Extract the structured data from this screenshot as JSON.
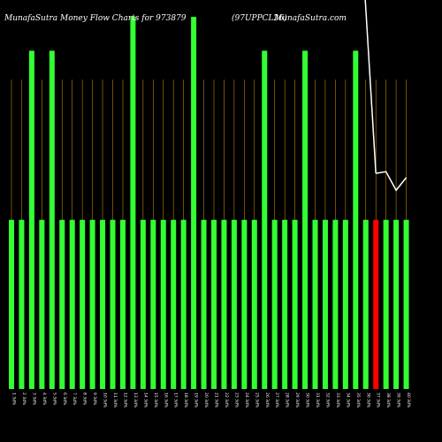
{
  "header": {
    "brand": "MunafaSutra",
    "title": "Money Flow  Charts for 973879",
    "symbol": "(97UPPCL26)",
    "site": "MunafaSutra.com"
  },
  "colors": {
    "background": "#000000",
    "up_bar": "#33ff33",
    "down_bar": "#ff0000",
    "grid": "#b8860b",
    "line": "#ffffff",
    "text": "#ffffff"
  },
  "chart_data": {
    "type": "bar",
    "title": "Money Flow  Charts for 973879",
    "grid": true,
    "categories": [
      "1 3d%",
      "2 3d%",
      "3 3d%",
      "4 3d%",
      "5 3d%",
      "6 3d%",
      "7 3d%",
      "8 3d%",
      "9 3d%",
      "10 3d%",
      "11 3d%",
      "12 3d%",
      "13 3d%",
      "14 3d%",
      "15 3d%",
      "16 3d%",
      "17 3d%",
      "18 3d%",
      "19 3d%",
      "20 3d%",
      "21 3d%",
      "22 3d%",
      "23 3d%",
      "24 3d%",
      "25 3d%",
      "26 3d%",
      "27 3d%",
      "28 3d%",
      "29 3d%",
      "30 3d%",
      "31 3d%",
      "32 3d%",
      "33 3d%",
      "34 3d%",
      "35 3d%",
      "36 3d%",
      "37 3d%",
      "38 3d%",
      "39 3d%",
      "40 3d%"
    ],
    "series": [
      {
        "values": [
          200,
          200,
          400,
          200,
          400,
          200,
          200,
          200,
          200,
          200,
          200,
          200,
          440,
          200,
          200,
          200,
          200,
          200,
          440,
          200,
          200,
          200,
          200,
          200,
          200,
          400,
          200,
          200,
          200,
          400,
          200,
          200,
          200,
          200,
          400,
          200,
          200,
          200,
          200,
          200
        ],
        "colors": [
          "up",
          "up",
          "up",
          "up",
          "up",
          "up",
          "up",
          "up",
          "up",
          "up",
          "up",
          "up",
          "up",
          "up",
          "up",
          "up",
          "up",
          "up",
          "up",
          "up",
          "up",
          "up",
          "up",
          "up",
          "up",
          "up",
          "up",
          "up",
          "up",
          "up",
          "up",
          "up",
          "up",
          "up",
          "up",
          "up",
          "down",
          "up",
          "up",
          "up"
        ]
      },
      {
        "type": "line",
        "values": [
          null,
          null,
          null,
          null,
          null,
          null,
          null,
          null,
          null,
          null,
          null,
          null,
          null,
          null,
          null,
          null,
          null,
          null,
          null,
          null,
          null,
          null,
          null,
          null,
          null,
          null,
          null,
          null,
          null,
          null,
          null,
          null,
          null,
          null,
          null,
          null,
          255,
          257,
          235,
          250
        ]
      }
    ],
    "ylim": [
      0,
      460
    ]
  }
}
